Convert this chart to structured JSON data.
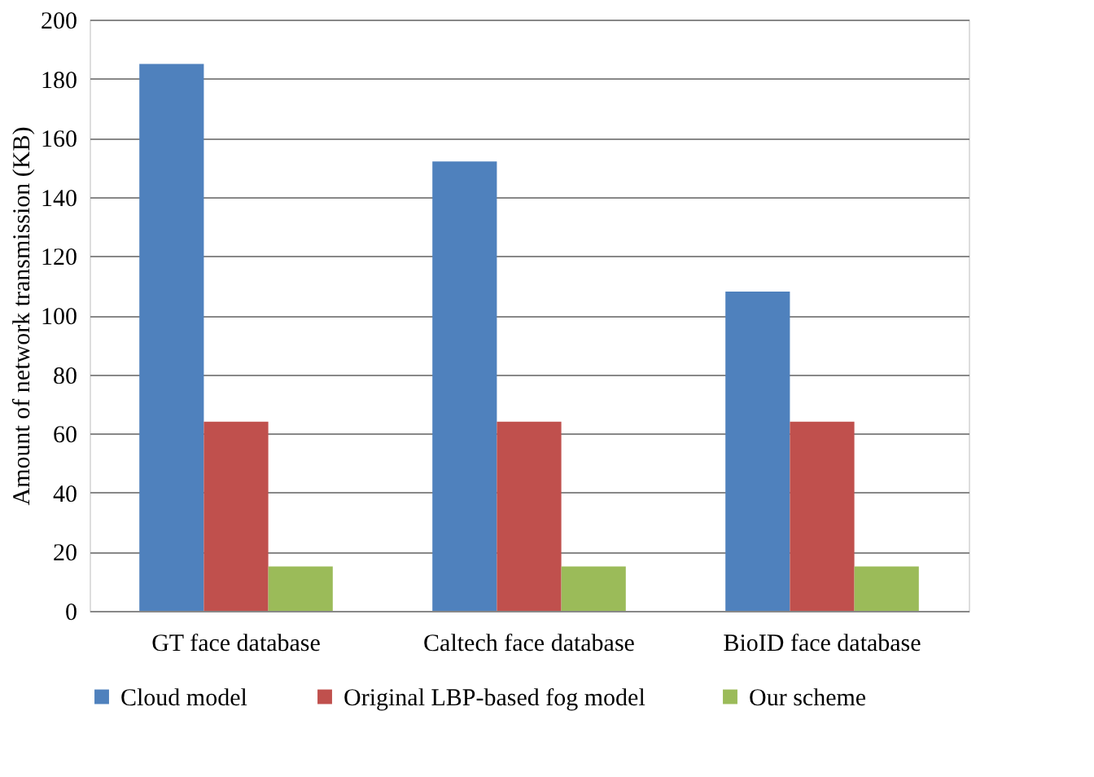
{
  "chart_data": {
    "type": "bar",
    "ylabel": "Amount of network transmission (KB)",
    "categories": [
      "GT face database",
      "Caltech face database",
      "BioID face database"
    ],
    "series": [
      {
        "name": "Cloud model",
        "color": "#4f81bd",
        "values": [
          185,
          152,
          108
        ]
      },
      {
        "name": "Original  LBP-based fog model",
        "color": "#c0504d",
        "values": [
          64,
          64,
          64
        ]
      },
      {
        "name": "Our scheme",
        "color": "#9bbb59",
        "values": [
          15,
          15,
          15
        ]
      }
    ],
    "ylim": [
      0,
      200
    ],
    "yticks": [
      0,
      20,
      40,
      60,
      80,
      100,
      120,
      140,
      160,
      180,
      200
    ],
    "grid": "y",
    "legend": "bottom"
  }
}
